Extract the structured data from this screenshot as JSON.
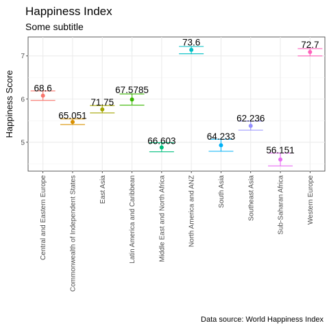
{
  "chart_data": {
    "type": "scatter",
    "title": "Happiness Index",
    "subtitle": "Some subtitle",
    "ylabel": "Happiness Score",
    "xlabel": "",
    "caption": "Data source: World Happiness Index",
    "ylim": [
      4.33,
      7.44
    ],
    "yticks": [
      5,
      6,
      7
    ],
    "grid": true,
    "legend": "none",
    "categories": [
      "Central and Eastern Europe",
      "Commonwealth of Independent States",
      "East Asia",
      "Latin America and Caribbean",
      "Middle East and North Africa",
      "North America and ANZ",
      "South Asia",
      "Southeast Asia",
      "Sub-Saharan Africa",
      "Western Europe"
    ],
    "colors": [
      "#F8766D",
      "#D89000",
      "#A3A500",
      "#39B600",
      "#00BF7D",
      "#00BFC4",
      "#00B0F6",
      "#9590FF",
      "#E76BF3",
      "#FF62BC"
    ],
    "means": [
      6.08,
      5.47,
      5.76,
      5.99,
      4.88,
      7.14,
      4.93,
      5.38,
      4.6,
      7.09
    ],
    "error_low": [
      5.97,
      5.41,
      5.68,
      5.86,
      4.78,
      7.05,
      4.79,
      5.28,
      4.45,
      7.0
    ],
    "error_high": [
      6.19,
      5.54,
      5.85,
      6.12,
      4.99,
      7.22,
      5.07,
      5.49,
      4.75,
      7.17
    ],
    "point_labels": [
      "68.6",
      "65.051",
      "71.75",
      "67.5785",
      "66.603",
      "73.6",
      "64.233",
      "62.236",
      "56.151",
      "72.7"
    ],
    "label_y": [
      6.18,
      5.54,
      5.85,
      6.14,
      4.96,
      7.24,
      5.06,
      5.48,
      4.74,
      7.19
    ]
  }
}
